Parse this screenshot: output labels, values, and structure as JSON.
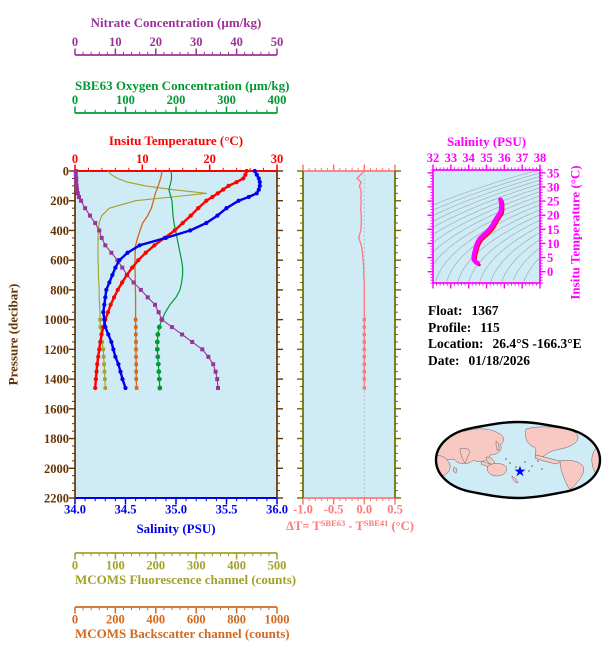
{
  "info": {
    "lines": [
      {
        "label": "Float:",
        "value": "1367"
      },
      {
        "label": "Profile:",
        "value": "115"
      },
      {
        "label": "Location:",
        "value": "26.4°S  -166.3°E"
      },
      {
        "label": "Date:",
        "value": "01/18/2026"
      }
    ]
  },
  "chart_data": {
    "type": "line",
    "plot_background": "#cfebf6",
    "main_plot": {
      "y_axis": {
        "label": "Pressure (decibar)",
        "min": 0,
        "max": 2200,
        "ticks": [
          0,
          200,
          400,
          600,
          800,
          1000,
          1200,
          1400,
          1600,
          1800,
          2000,
          2200
        ],
        "minor_step": 50,
        "color": "#663300"
      },
      "x_axes": {
        "nitrate": {
          "label": "Nitrate Concentration (µm/kg)",
          "min": 0,
          "max": 50,
          "ticks": [
            0,
            10,
            20,
            30,
            40,
            50
          ],
          "minor_step": 2,
          "decimals": 0,
          "color": "#993399"
        },
        "oxygen": {
          "label": "SBE63 Oxygen Concentration (µm/kg)",
          "min": 0,
          "max": 400,
          "ticks": [
            0,
            100,
            200,
            300,
            400
          ],
          "minor_step": 20,
          "decimals": 0,
          "color": "#009933"
        },
        "temperature": {
          "label": "Insitu Temperature (°C)",
          "min": 0,
          "max": 30,
          "ticks": [
            0,
            10,
            20,
            30
          ],
          "minor_step": 2,
          "decimals": 0,
          "color": "#ff0000"
        },
        "salinity": {
          "label": "Salinity (PSU)",
          "min": 34,
          "max": 36,
          "ticks": [
            34.0,
            34.5,
            35.0,
            35.5,
            36.0
          ],
          "minor_step": 0.1,
          "decimals": 1,
          "color": "#0000ee"
        },
        "fluorescence": {
          "label": "MCOMS Fluorescence channel (counts)",
          "min": 0,
          "max": 500,
          "ticks": [
            0,
            100,
            200,
            300,
            400,
            500
          ],
          "minor_step": 20,
          "decimals": 0,
          "color": "#a3a129"
        },
        "backscatter": {
          "label": "MCOMS Backscatter channel (counts)",
          "min": 0,
          "max": 1000,
          "ticks": [
            0,
            200,
            400,
            600,
            800,
            1000
          ],
          "minor_step": 40,
          "decimals": 0,
          "color": "#d2691e"
        }
      },
      "pressure_dbar": [
        0,
        25,
        50,
        75,
        100,
        125,
        150,
        175,
        200,
        250,
        300,
        350,
        400,
        450,
        500,
        550,
        600,
        650,
        700,
        750,
        800,
        850,
        900,
        950,
        1000,
        1050,
        1100,
        1150,
        1200,
        1250,
        1300,
        1350,
        1400,
        1460
      ],
      "series": [
        {
          "name": "temperature",
          "values": [
            25.5,
            25.3,
            25.0,
            24.0,
            22.8,
            22.0,
            21.2,
            20.4,
            19.5,
            18.3,
            17.2,
            16.0,
            14.8,
            13.3,
            11.8,
            10.5,
            9.4,
            8.5,
            7.7,
            7.0,
            6.35,
            5.8,
            5.3,
            4.9,
            4.5,
            4.2,
            3.95,
            3.75,
            3.6,
            3.45,
            3.3,
            3.2,
            3.1,
            3.0
          ]
        },
        {
          "name": "salinity",
          "values": [
            35.78,
            35.8,
            35.82,
            35.83,
            35.83,
            35.82,
            35.8,
            35.72,
            35.62,
            35.5,
            35.41,
            35.3,
            35.14,
            34.9,
            34.64,
            34.52,
            34.44,
            34.4,
            34.37,
            34.34,
            34.31,
            34.3,
            34.29,
            34.28,
            34.29,
            34.3,
            34.33,
            34.36,
            34.38,
            34.4,
            34.43,
            34.45,
            34.47,
            34.5
          ]
        },
        {
          "name": "nitrate",
          "values": [
            0.2,
            0.2,
            0.3,
            0.3,
            0.4,
            0.5,
            0.7,
            1.0,
            1.5,
            2.5,
            3.7,
            5.0,
            6.0,
            6.6,
            7.5,
            9.0,
            10.5,
            11.7,
            12.9,
            14.5,
            16.3,
            18.0,
            19.8,
            20.7,
            21.5,
            24.0,
            26.5,
            29.0,
            31.5,
            33.0,
            34.2,
            34.8,
            35.2,
            35.4
          ]
        },
        {
          "name": "oxygen",
          "values": [
            190,
            191,
            191,
            190,
            188,
            186,
            188,
            190,
            192,
            193,
            194,
            196,
            199,
            202,
            205,
            208,
            211,
            213,
            213,
            211,
            208,
            200,
            188,
            179,
            172,
            167,
            164,
            163,
            163,
            164,
            165,
            166,
            167,
            168
          ]
        },
        {
          "name": "fluorescence",
          "values": [
            82,
            90,
            105,
            130,
            175,
            240,
            325,
            240,
            150,
            85,
            66,
            60,
            58,
            57,
            57,
            57,
            57,
            58,
            58,
            59,
            60,
            60,
            61,
            62,
            62,
            63,
            65,
            67,
            70,
            71,
            72,
            73,
            74,
            75
          ]
        },
        {
          "name": "backscatter",
          "values": [
            430,
            428,
            424,
            418,
            412,
            405,
            398,
            393,
            388,
            378,
            360,
            335,
            322,
            310,
            300,
            298,
            297,
            297,
            298,
            298,
            299,
            300,
            300,
            300,
            300,
            301,
            301,
            302,
            302,
            302,
            303,
            303,
            303,
            305
          ]
        }
      ]
    },
    "delta_t_plot": {
      "x_label_parts": [
        "ΔT= T",
        "SBE63",
        " - T",
        "SBE41",
        " (°C)"
      ],
      "min": -1.0,
      "max": 0.5,
      "ticks": [
        -1.0,
        -0.5,
        0.0,
        0.5
      ],
      "minor_step": 0.1,
      "decimals": 1,
      "color": "#ff7878",
      "frame_color": "#6b6b00",
      "values": [
        0.0,
        -0.06,
        -0.12,
        -0.05,
        -0.08,
        -0.06,
        -0.05,
        -0.06,
        -0.05,
        -0.06,
        -0.05,
        -0.05,
        -0.06,
        -0.09,
        -0.05,
        -0.03,
        -0.02,
        -0.01,
        -0.01,
        0.0,
        0.0,
        0.0,
        0.0,
        0.0,
        0.0,
        0.0,
        0.0,
        0.0,
        0.0,
        0.0,
        0.0,
        0.0,
        0.0,
        0.0
      ]
    },
    "ts_plot": {
      "x_label": "Salinity (PSU)",
      "x_min": 32,
      "x_max": 38,
      "x_ticks": [
        32,
        33,
        34,
        35,
        36,
        37,
        38
      ],
      "x_minor_step": 0.2,
      "y_label": "Insitu Temperature (°C)",
      "y_min": -4,
      "y_max": 36,
      "y_ticks": [
        35,
        30,
        25,
        20,
        15,
        10,
        5,
        0
      ],
      "y_minor_step": 1,
      "frame_color": "#ff00ff",
      "curve_color": "#ff00ff",
      "shadow_color": "#ff0000",
      "isopycnal_color": "#9fb0b5",
      "note": "curve is salinity vs temperature from main_plot series"
    },
    "map": {
      "ocean_color": "#cfebf6",
      "land_color": "#f7c9c2",
      "outline_color": "#000000",
      "marker": "★",
      "marker_color": "#0000ff"
    }
  }
}
